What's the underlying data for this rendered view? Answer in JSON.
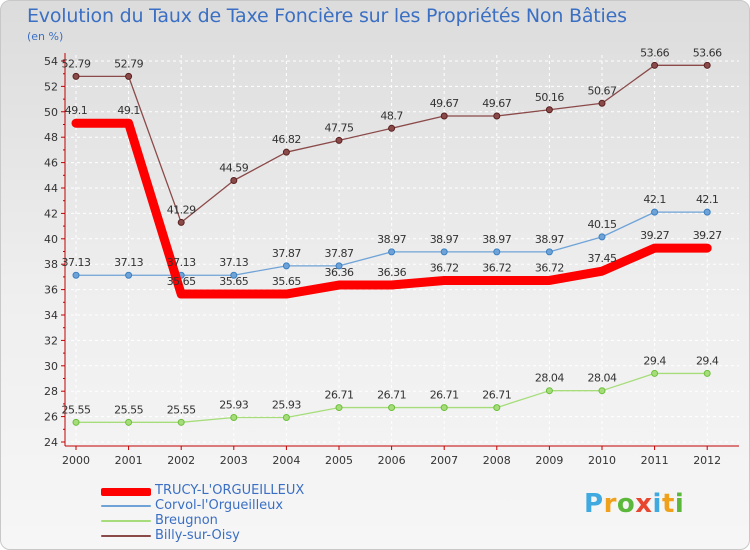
{
  "chart_data": {
    "type": "line",
    "title": "Evolution du Taux de Taxe Foncière sur les Propriétés Non Bâties",
    "subtitle": "(en %)",
    "xlabel": "",
    "ylabel": "",
    "ylim": [
      24,
      54
    ],
    "yticks": [
      "24",
      "26",
      "28",
      "30",
      "32",
      "34",
      "36",
      "38",
      "40",
      "42",
      "44",
      "46",
      "48",
      "50",
      "52",
      "54"
    ],
    "categories": [
      "2000",
      "2001",
      "2002",
      "2003",
      "2004",
      "2005",
      "2006",
      "2007",
      "2008",
      "2009",
      "2010",
      "2011",
      "2012"
    ],
    "series": [
      {
        "name": "TRUCY-L'ORGUEILLEUX",
        "color": "#ff0000",
        "values": [
          49.1,
          49.1,
          35.65,
          35.65,
          35.65,
          36.36,
          36.36,
          36.72,
          36.72,
          36.72,
          37.45,
          39.27,
          39.27
        ],
        "labels": [
          "49.1",
          "49.1",
          "35.65",
          "35.65",
          "35.65",
          "36.36",
          "36.36",
          "36.72",
          "36.72",
          "36.72",
          "37.45",
          "39.27",
          "39.27"
        ]
      },
      {
        "name": "Corvol-l'Orgueilleux",
        "color": "#6fa3d8",
        "values": [
          37.13,
          37.13,
          37.13,
          37.13,
          37.87,
          37.87,
          38.97,
          38.97,
          38.97,
          38.97,
          40.15,
          42.1,
          42.1
        ],
        "labels": [
          "37.13",
          "37.13",
          "37.13",
          "37.13",
          "37.87",
          "37.87",
          "38.97",
          "38.97",
          "38.97",
          "38.97",
          "40.15",
          "42.1",
          "42.1"
        ]
      },
      {
        "name": "Breugnon",
        "color": "#a6dd7a",
        "values": [
          25.55,
          25.55,
          25.55,
          25.93,
          25.93,
          26.71,
          26.71,
          26.71,
          26.71,
          28.04,
          28.04,
          29.4,
          29.4
        ],
        "labels": [
          "25.55",
          "25.55",
          "25.55",
          "25.93",
          "25.93",
          "26.71",
          "26.71",
          "26.71",
          "26.71",
          "28.04",
          "28.04",
          "29.4",
          "29.4"
        ]
      },
      {
        "name": "Billy-sur-Oisy",
        "color": "#8b4a4a",
        "values": [
          52.79,
          52.79,
          41.29,
          44.59,
          46.82,
          47.75,
          48.7,
          49.67,
          49.67,
          50.16,
          50.67,
          53.66,
          53.66
        ],
        "labels": [
          "52.79",
          "52.79",
          "41.29",
          "44.59",
          "46.82",
          "47.75",
          "48.7",
          "49.67",
          "49.67",
          "50.16",
          "50.67",
          "53.66",
          "53.66"
        ]
      }
    ],
    "legend": "bottom-left"
  },
  "brand": {
    "letters": [
      "P",
      "r",
      "o",
      "x",
      "i",
      "t",
      "i"
    ],
    "colors": [
      "#3fa9e0",
      "#f0a11c",
      "#5cb83a",
      "#e8462e",
      "#3fa9e0",
      "#f0a11c",
      "#5cb83a"
    ]
  }
}
